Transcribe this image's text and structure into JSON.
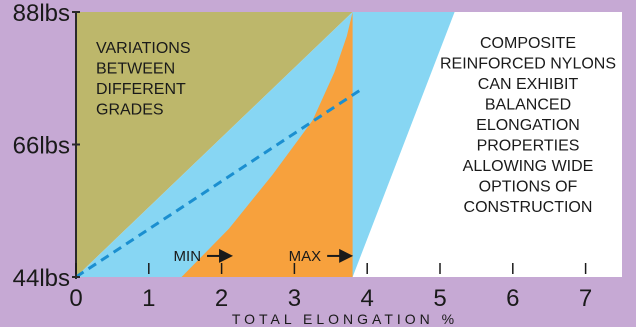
{
  "chart_data": {
    "type": "area",
    "title": "",
    "xlabel": "TOTAL ELONGATION %",
    "ylabel": "",
    "x_ticks": [
      "0",
      "1",
      "2",
      "3",
      "4",
      "5",
      "6",
      "7"
    ],
    "y_ticks": [
      "44lbs",
      "66lbs",
      "88lbs"
    ],
    "xlim": [
      0,
      7.8
    ],
    "ylim": [
      44,
      88
    ],
    "grid": false,
    "regions": [
      {
        "name": "olive-region",
        "color": "#bdb76b",
        "points": [
          [
            0,
            44
          ],
          [
            0,
            88
          ],
          [
            3.8,
            88
          ]
        ]
      },
      {
        "name": "blue-region",
        "color": "#87d6f3",
        "points": [
          [
            0,
            44
          ],
          [
            3.8,
            88
          ],
          [
            5.2,
            88
          ],
          [
            3.8,
            44
          ]
        ]
      },
      {
        "name": "orange-region",
        "color": "#f7a13d",
        "curve": [
          [
            1.45,
            44
          ],
          [
            2.1,
            52
          ],
          [
            2.7,
            61
          ],
          [
            3.25,
            70
          ],
          [
            3.55,
            78
          ],
          [
            3.72,
            84
          ],
          [
            3.8,
            88
          ]
        ],
        "closing": [
          [
            3.8,
            44
          ]
        ]
      }
    ],
    "dashed_line": {
      "name": "trend",
      "color": "#1b8fd0",
      "x": [
        0,
        3.9
      ],
      "y": [
        44,
        75
      ]
    },
    "annotations": [
      {
        "name": "min-label",
        "text": "MIN",
        "x": 1.8,
        "y": 47
      },
      {
        "name": "max-label",
        "text": "MAX",
        "x": 3.45,
        "y": 47
      }
    ],
    "text_blocks": {
      "left": [
        "VARIATIONS",
        "BETWEEN",
        "DIFFERENT",
        "GRADES"
      ],
      "right": [
        "COMPOSITE",
        "REINFORCED NYLONS",
        "CAN EXHIBIT",
        "BALANCED",
        "ELONGATION",
        "PROPERTIES",
        "ALLOWING WIDE",
        "OPTIONS OF",
        "CONSTRUCTION"
      ]
    }
  }
}
